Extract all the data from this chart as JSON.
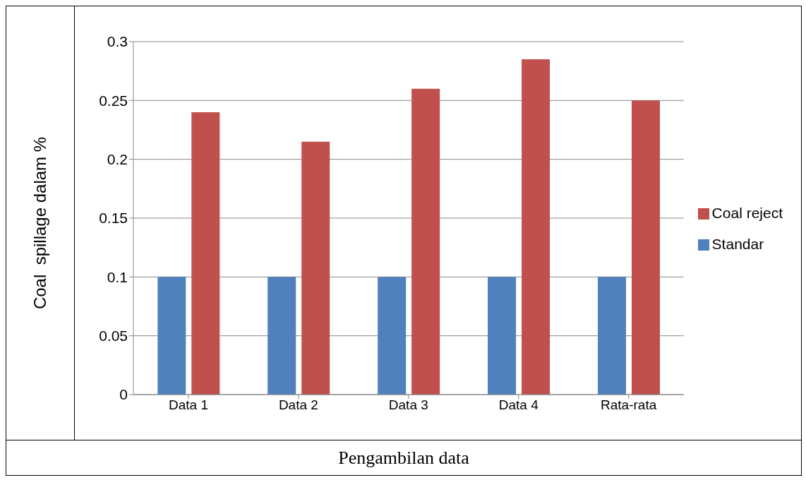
{
  "chart_data": {
    "type": "bar",
    "xlabel": "Pengambilan data",
    "ylabel": "Coal  spillage dalam %",
    "categories": [
      "Data 1",
      "Data 2",
      "Data 3",
      "Data 4",
      "Rata-rata"
    ],
    "series": [
      {
        "name": "Standar",
        "color": "#4f81bd",
        "values": [
          0.1,
          0.1,
          0.1,
          0.1,
          0.1
        ]
      },
      {
        "name": "Coal reject",
        "color": "#c0504d",
        "values": [
          0.24,
          0.215,
          0.26,
          0.285,
          0.25
        ]
      }
    ],
    "ylim": [
      0,
      0.3
    ],
    "yticks": [
      0,
      0.05,
      0.1,
      0.15,
      0.2,
      0.25,
      0.3
    ],
    "grid": "y",
    "legend": "right"
  }
}
